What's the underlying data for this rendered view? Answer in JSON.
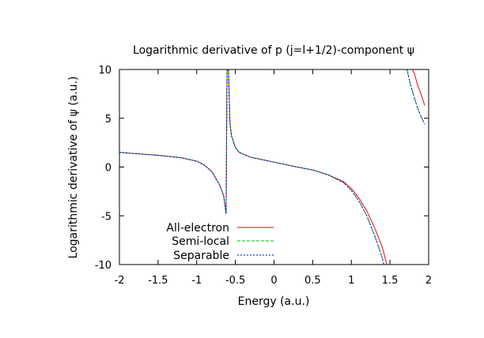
{
  "chart_data": {
    "type": "line",
    "title": "Logarithmic derivative of p (j=l+1/2)-component ψ",
    "xlabel": "Energy (a.u.)",
    "ylabel": "Logarithmic derivative of ψ (a.u.)",
    "xlim": [
      -2,
      2
    ],
    "ylim": [
      -10,
      10
    ],
    "xticks": [
      "-2",
      "-1.5",
      "-1",
      "-0.5",
      "0",
      "0.5",
      "1",
      "1.5",
      "2"
    ],
    "yticks": [
      "10",
      "5",
      "0",
      "-5",
      "-10"
    ],
    "grid": false,
    "legend_position": "bottom-left",
    "series": [
      {
        "name": "All-electron",
        "color": "#ff0000",
        "dash": "solid",
        "segments": [
          [
            [
              -2.0,
              1.5
            ],
            [
              -1.5,
              1.2
            ],
            [
              -1.2,
              0.95
            ],
            [
              -1.0,
              0.6
            ],
            [
              -0.9,
              0.2
            ],
            [
              -0.8,
              -0.5
            ],
            [
              -0.7,
              -1.9
            ],
            [
              -0.65,
              -3.0
            ],
            [
              -0.62,
              -4.8
            ],
            [
              -0.608,
              10.0
            ]
          ],
          [
            [
              -0.59,
              10.0
            ],
            [
              -0.57,
              4.5
            ],
            [
              -0.55,
              3.2
            ],
            [
              -0.5,
              2.0
            ],
            [
              -0.45,
              1.5
            ],
            [
              -0.3,
              1.0
            ],
            [
              0.0,
              0.5
            ],
            [
              0.3,
              0.0
            ],
            [
              0.5,
              -0.3
            ],
            [
              0.7,
              -0.8
            ],
            [
              0.9,
              -1.5
            ],
            [
              1.0,
              -2.2
            ],
            [
              1.1,
              -3.2
            ],
            [
              1.2,
              -4.5
            ],
            [
              1.3,
              -6.2
            ],
            [
              1.4,
              -8.2
            ],
            [
              1.46,
              -10.0
            ]
          ],
          [
            [
              1.79,
              10.0
            ],
            [
              1.82,
              9.5
            ],
            [
              1.85,
              8.6
            ],
            [
              1.9,
              7.5
            ],
            [
              1.95,
              6.3
            ]
          ]
        ]
      },
      {
        "name": "Semi-local",
        "color": "#00c000",
        "dash": "4,2",
        "segments": [
          [
            [
              -2.0,
              1.5
            ],
            [
              -1.5,
              1.2
            ],
            [
              -1.2,
              0.95
            ],
            [
              -1.0,
              0.6
            ],
            [
              -0.9,
              0.2
            ],
            [
              -0.8,
              -0.5
            ],
            [
              -0.7,
              -1.9
            ],
            [
              -0.65,
              -3.0
            ],
            [
              -0.62,
              -4.8
            ],
            [
              -0.608,
              10.0
            ]
          ],
          [
            [
              -0.59,
              10.0
            ],
            [
              -0.57,
              4.5
            ],
            [
              -0.55,
              3.2
            ],
            [
              -0.5,
              2.0
            ],
            [
              -0.45,
              1.5
            ],
            [
              -0.3,
              1.0
            ],
            [
              0.0,
              0.5
            ],
            [
              0.3,
              0.0
            ],
            [
              0.5,
              -0.3
            ],
            [
              0.7,
              -0.8
            ],
            [
              0.9,
              -1.6
            ],
            [
              1.0,
              -2.4
            ],
            [
              1.1,
              -3.5
            ],
            [
              1.2,
              -5.0
            ],
            [
              1.3,
              -7.0
            ],
            [
              1.4,
              -9.3
            ],
            [
              1.42,
              -10.0
            ]
          ],
          [
            [
              1.72,
              10.0
            ],
            [
              1.76,
              8.6
            ],
            [
              1.8,
              7.5
            ],
            [
              1.85,
              6.2
            ],
            [
              1.9,
              5.2
            ],
            [
              1.95,
              4.4
            ]
          ]
        ]
      },
      {
        "name": "Separable",
        "color": "#0000ff",
        "dash": "2,2",
        "segments": [
          [
            [
              -2.0,
              1.5
            ],
            [
              -1.5,
              1.2
            ],
            [
              -1.2,
              0.95
            ],
            [
              -1.0,
              0.6
            ],
            [
              -0.9,
              0.2
            ],
            [
              -0.8,
              -0.5
            ],
            [
              -0.7,
              -1.9
            ],
            [
              -0.65,
              -3.0
            ],
            [
              -0.62,
              -4.8
            ],
            [
              -0.608,
              10.0
            ]
          ],
          [
            [
              -0.59,
              10.0
            ],
            [
              -0.57,
              4.5
            ],
            [
              -0.55,
              3.2
            ],
            [
              -0.5,
              2.0
            ],
            [
              -0.45,
              1.5
            ],
            [
              -0.3,
              1.0
            ],
            [
              0.0,
              0.5
            ],
            [
              0.3,
              0.0
            ],
            [
              0.5,
              -0.3
            ],
            [
              0.7,
              -0.8
            ],
            [
              0.9,
              -1.6
            ],
            [
              1.0,
              -2.4
            ],
            [
              1.1,
              -3.5
            ],
            [
              1.2,
              -5.0
            ],
            [
              1.3,
              -7.0
            ],
            [
              1.4,
              -9.3
            ],
            [
              1.42,
              -10.0
            ]
          ],
          [
            [
              1.72,
              10.0
            ],
            [
              1.76,
              8.6
            ],
            [
              1.8,
              7.5
            ],
            [
              1.85,
              6.2
            ],
            [
              1.9,
              5.2
            ],
            [
              1.95,
              4.4
            ]
          ]
        ]
      }
    ]
  }
}
